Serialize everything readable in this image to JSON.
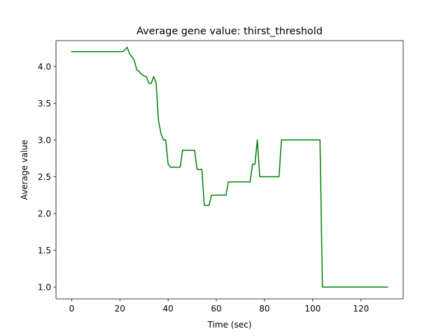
{
  "chart_data": {
    "type": "line",
    "title": "Average gene value: thirst_threshold",
    "xlabel": "Time (sec)",
    "ylabel": "Average value",
    "xlim": [
      -6.5,
      137.5
    ],
    "ylim": [
      0.84,
      4.35
    ],
    "xticks": [
      0,
      20,
      40,
      60,
      80,
      100,
      120
    ],
    "yticks": [
      1.0,
      1.5,
      2.0,
      2.5,
      3.0,
      3.5,
      4.0
    ],
    "grid": false,
    "legend": "none",
    "series": [
      {
        "color": "#008000",
        "x": [
          0,
          21,
          22,
          23,
          24,
          25,
          26,
          27,
          28,
          29,
          30,
          31,
          32,
          33,
          34,
          35,
          36,
          37,
          38,
          39,
          40,
          41,
          42,
          43,
          44,
          45,
          46,
          47,
          48,
          49,
          50,
          51,
          52,
          53,
          54,
          55,
          56,
          57,
          58,
          59,
          60,
          61,
          62,
          63,
          64,
          65,
          66,
          67,
          68,
          69,
          70,
          71,
          72,
          73,
          74,
          75,
          76,
          77,
          78,
          79,
          80,
          81,
          82,
          83,
          84,
          85,
          86,
          87,
          88,
          89,
          90,
          100,
          103,
          104,
          110,
          120,
          131
        ],
        "y": [
          4.2,
          4.2,
          4.22,
          4.26,
          4.17,
          4.13,
          4.08,
          3.95,
          3.93,
          3.89,
          3.87,
          3.86,
          3.77,
          3.77,
          3.86,
          3.78,
          3.27,
          3.09,
          3.0,
          3.0,
          2.67,
          2.63,
          2.63,
          2.63,
          2.63,
          2.63,
          2.86,
          2.86,
          2.86,
          2.86,
          2.86,
          2.86,
          2.6,
          2.6,
          2.6,
          2.11,
          2.11,
          2.11,
          2.25,
          2.25,
          2.25,
          2.25,
          2.25,
          2.25,
          2.25,
          2.43,
          2.43,
          2.43,
          2.43,
          2.43,
          2.43,
          2.43,
          2.43,
          2.43,
          2.43,
          2.67,
          2.67,
          3.0,
          2.5,
          2.5,
          2.5,
          2.5,
          2.5,
          2.5,
          2.5,
          2.5,
          2.5,
          3.0,
          3.0,
          3.0,
          3.0,
          3.0,
          3.0,
          1.0,
          1.0,
          1.0,
          1.0
        ]
      }
    ]
  }
}
